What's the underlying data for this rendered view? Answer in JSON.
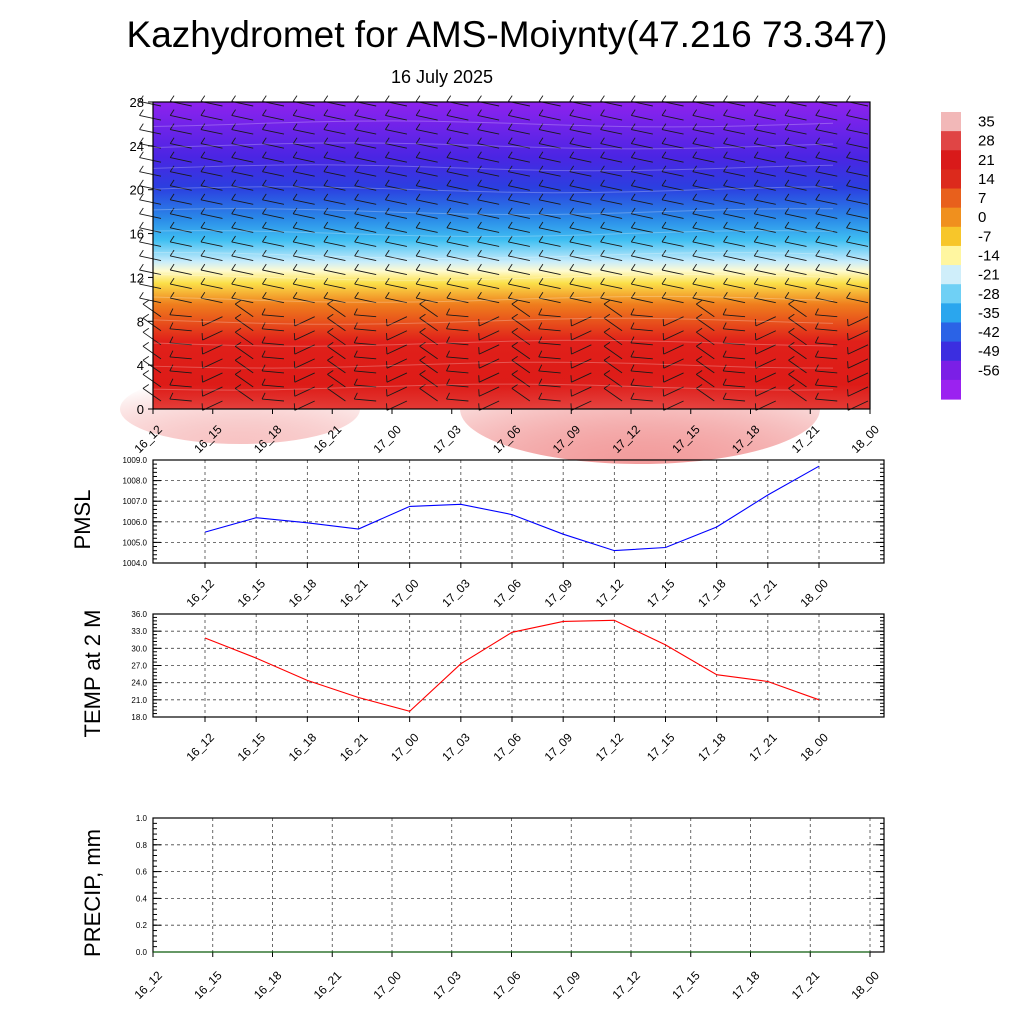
{
  "header": {
    "title": "Kazhydromet for AMS-Moiynty(47.216 73.347)",
    "subtitle": "16 July 2025"
  },
  "chart_data": [
    {
      "type": "heatmap",
      "x_tick_labels": [
        "16_12",
        "16_15",
        "16_18",
        "16_21",
        "17_00",
        "17_03",
        "17_06",
        "17_09",
        "17_12",
        "17_15",
        "17_18",
        "17_21",
        "18_00"
      ],
      "y_tick_labels": [
        "0",
        "4",
        "8",
        "12",
        "16",
        "20",
        "24",
        "28"
      ],
      "ylim": [
        0,
        28
      ],
      "colorbar_labels": [
        "35",
        "28",
        "21",
        "14",
        "7",
        "0",
        "-7",
        "-14",
        "-21",
        "-28",
        "-35",
        "-42",
        "-49",
        "-56"
      ],
      "colorbar_colors": [
        "#f2b8b8",
        "#e04545",
        "#d91a1a",
        "#dc2a1c",
        "#e8601c",
        "#f0901e",
        "#f7c62a",
        "#fff6a0",
        "#cfeefa",
        "#6fd0f5",
        "#2aa6ee",
        "#2b63e6",
        "#3b2ee0",
        "#7b1fe6",
        "#9b22f0"
      ],
      "overlay": "wind barbs"
    },
    {
      "type": "line",
      "ylabel": "PMSL",
      "x_tick_labels": [
        "16_12",
        "16_15",
        "16_18",
        "16_21",
        "17_00",
        "17_03",
        "17_06",
        "17_09",
        "17_12",
        "17_15",
        "17_18",
        "17_21",
        "18_00"
      ],
      "y_tick_labels": [
        "1004.0",
        "1005.0",
        "1006.0",
        "1007.0",
        "1008.0",
        "1009.0"
      ],
      "ylim": [
        1004.0,
        1009.0
      ],
      "grid": true,
      "series": [
        {
          "color": "#0000ff",
          "values": [
            1005.5,
            1006.2,
            1005.95,
            1005.65,
            1006.75,
            1006.85,
            1006.35,
            1005.4,
            1004.6,
            1004.75,
            1005.75,
            1007.3,
            1008.7
          ]
        }
      ]
    },
    {
      "type": "line",
      "ylabel": "TEMP at 2 M",
      "x_tick_labels": [
        "16_12",
        "16_15",
        "16_18",
        "16_21",
        "17_00",
        "17_03",
        "17_06",
        "17_09",
        "17_12",
        "17_15",
        "17_18",
        "17_21",
        "18_00"
      ],
      "y_tick_labels": [
        "18.0",
        "21.0",
        "24.0",
        "27.0",
        "30.0",
        "33.0",
        "36.0"
      ],
      "ylim": [
        18.0,
        36.0
      ],
      "grid": true,
      "series": [
        {
          "color": "#ff0000",
          "values": [
            31.8,
            28.3,
            24.4,
            21.4,
            19.0,
            27.3,
            32.8,
            34.7,
            34.9,
            30.6,
            25.4,
            24.2,
            21.0
          ]
        }
      ]
    },
    {
      "type": "line",
      "ylabel": "PRECIP, mm",
      "x_tick_labels": [
        "16_12",
        "16_15",
        "16_18",
        "16_21",
        "17_00",
        "17_03",
        "17_06",
        "17_09",
        "17_12",
        "17_15",
        "17_18",
        "17_21",
        "18_00"
      ],
      "y_tick_labels": [
        "0.0",
        "0.2",
        "0.4",
        "0.6",
        "0.8",
        "1.0"
      ],
      "ylim": [
        0.0,
        1.0
      ],
      "grid": true,
      "series": [
        {
          "color": "#006400",
          "values": [
            0,
            0,
            0,
            0,
            0,
            0,
            0,
            0,
            0,
            0,
            0,
            0,
            0
          ]
        }
      ]
    }
  ]
}
